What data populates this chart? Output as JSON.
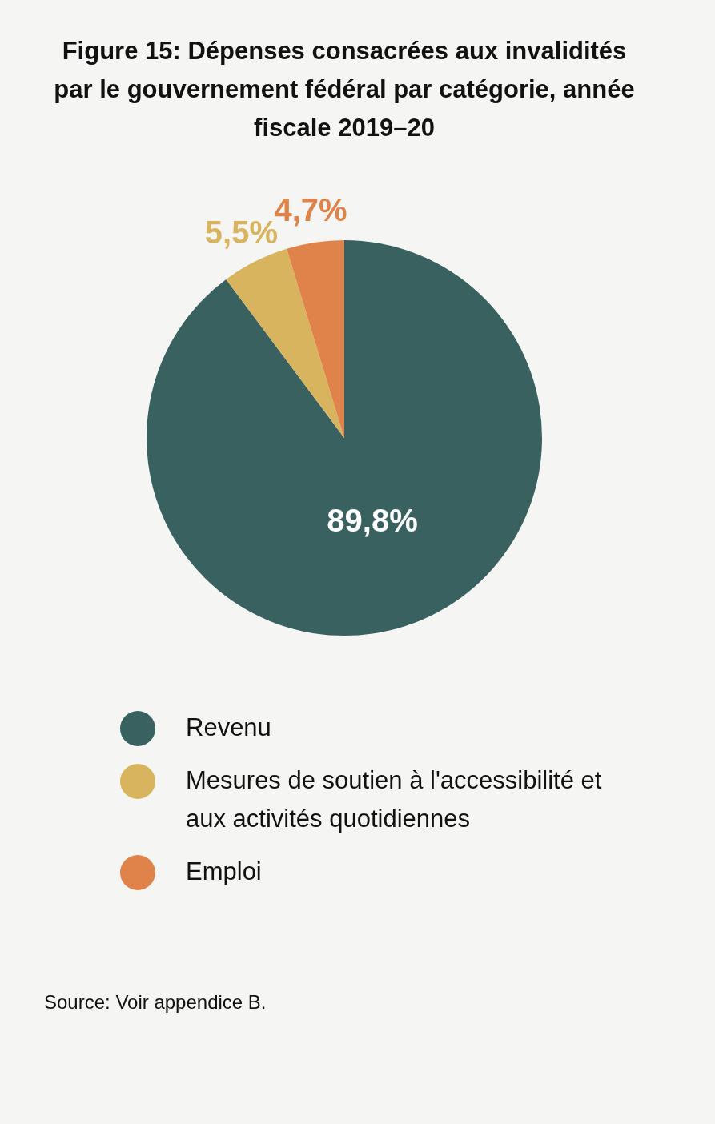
{
  "chart_data": {
    "type": "pie",
    "title": "Figure 15: Dépenses consacrées aux invalidités par le gouvernement fédéral par catégorie, année fiscale 2019–20",
    "categories": [
      "Revenu",
      "Mesures de soutien à l'accessibilité et aux activités quotidiennes",
      "Emploi"
    ],
    "values": [
      89.8,
      5.5,
      4.7
    ],
    "colors": [
      "#386160",
      "#d9b45f",
      "#e0834a"
    ],
    "value_labels": [
      "89,8%",
      "5,5%",
      "4,7%"
    ],
    "legend": "bottom",
    "annotations": [
      "Source: Voir appendice B."
    ]
  }
}
